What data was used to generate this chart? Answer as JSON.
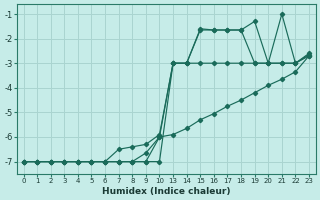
{
  "xlabel": "Humidex (Indice chaleur)",
  "bg_color": "#c6ece8",
  "grid_color": "#aad4d0",
  "line_color": "#1a6b5a",
  "series": [
    {
      "xi": [
        0,
        1,
        2,
        3,
        4,
        5,
        6,
        7,
        8,
        9,
        10,
        11,
        12,
        13,
        14,
        15,
        16,
        17,
        18,
        19,
        20,
        21
      ],
      "y": [
        -7,
        -7,
        -7,
        -7,
        -7,
        -7,
        -7,
        -7,
        -7,
        -7,
        -7,
        -3,
        -3,
        -1.6,
        -1.65,
        -1.65,
        -1.65,
        -1.3,
        -3,
        -1,
        -3,
        -2.6
      ]
    },
    {
      "xi": [
        0,
        1,
        2,
        3,
        4,
        5,
        6,
        7,
        8,
        9,
        10,
        11,
        12,
        13,
        14,
        15,
        16,
        17,
        18,
        19,
        20,
        21
      ],
      "y": [
        -7,
        -7,
        -7,
        -7,
        -7,
        -7,
        -7,
        -7,
        -7,
        -7,
        -6,
        -3,
        -3,
        -1.65,
        -1.65,
        -1.65,
        -1.65,
        -3,
        -3,
        -3,
        -3,
        -2.65
      ]
    },
    {
      "xi": [
        0,
        1,
        2,
        3,
        4,
        5,
        6,
        7,
        8,
        9,
        10,
        11,
        12,
        13,
        14,
        15,
        16,
        17,
        18,
        19,
        20,
        21
      ],
      "y": [
        -7,
        -7,
        -7,
        -7,
        -7,
        -7,
        -7,
        -6.5,
        -6.4,
        -6.3,
        -5.9,
        -3,
        -3,
        -3,
        -3,
        -3,
        -3,
        -3,
        -3,
        -3,
        -3,
        -2.7
      ]
    },
    {
      "xi": [
        0,
        1,
        2,
        3,
        4,
        5,
        6,
        7,
        8,
        9,
        10,
        11,
        12,
        13,
        14,
        15,
        16,
        17,
        18,
        19,
        20,
        21
      ],
      "y": [
        -7,
        -7,
        -7,
        -7,
        -7,
        -7,
        -7,
        -7,
        -7,
        -6.65,
        -6,
        -5.9,
        -5.65,
        -5.3,
        -5.05,
        -4.75,
        -4.5,
        -4.2,
        -3.9,
        -3.65,
        -3.35,
        -2.7
      ]
    }
  ],
  "xlabels": [
    "0",
    "1",
    "2",
    "3",
    "4",
    "5",
    "6",
    "7",
    "8",
    "9",
    "10",
    "13",
    "14",
    "15",
    "16",
    "17",
    "18",
    "19",
    "20",
    "21",
    "22",
    "23"
  ],
  "yticks": [
    -7,
    -6,
    -5,
    -4,
    -3,
    -2,
    -1
  ],
  "ylim": [
    -7.5,
    -0.6
  ]
}
